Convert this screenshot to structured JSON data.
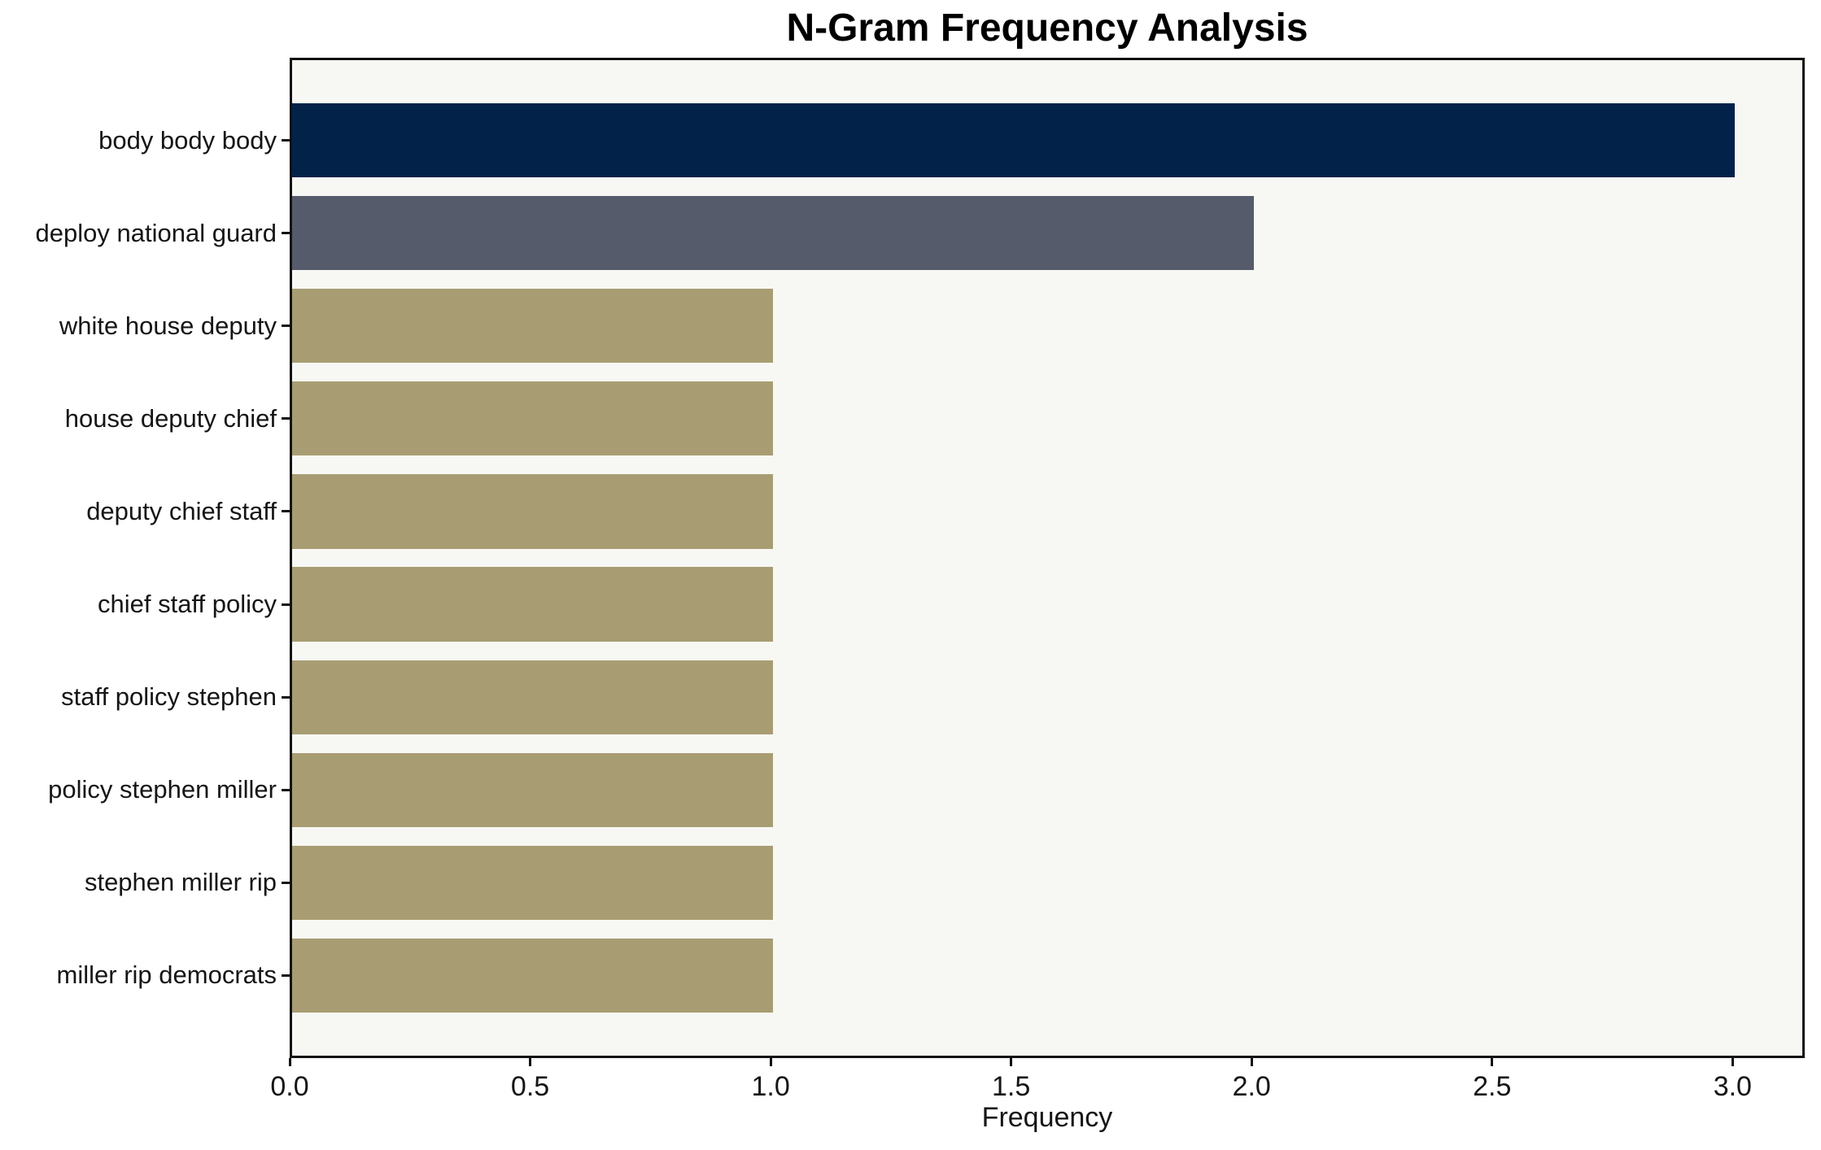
{
  "chart_data": {
    "type": "bar",
    "orientation": "horizontal",
    "title": "N-Gram Frequency Analysis",
    "xlabel": "Frequency",
    "ylabel": "",
    "categories": [
      "body body body",
      "deploy national guard",
      "white house deputy",
      "house deputy chief",
      "deputy chief staff",
      "chief staff policy",
      "staff policy stephen",
      "policy stephen miller",
      "stephen miller rip",
      "miller rip democrats"
    ],
    "values": [
      3,
      2,
      1,
      1,
      1,
      1,
      1,
      1,
      1,
      1
    ],
    "bar_colors": [
      "#032249",
      "#565B6B",
      "#A89D72",
      "#A89D72",
      "#A89D72",
      "#A89D72",
      "#A89D72",
      "#A89D72",
      "#A89D72",
      "#A89D72"
    ],
    "xlim": [
      0,
      3.15
    ],
    "xticks": [
      0,
      0.5,
      1,
      1.5,
      2,
      2.5,
      3
    ],
    "xtick_labels": [
      "0.0",
      "0.5",
      "1.0",
      "1.5",
      "2.0",
      "2.5",
      "3.0"
    ],
    "grid": false,
    "legend": "none",
    "bar_height_fraction": 0.8,
    "colors": {
      "plot_bg": "#F7F7F4",
      "figure_bg": "#FFFFFF",
      "axis": "#111111",
      "text": "#151515"
    }
  }
}
